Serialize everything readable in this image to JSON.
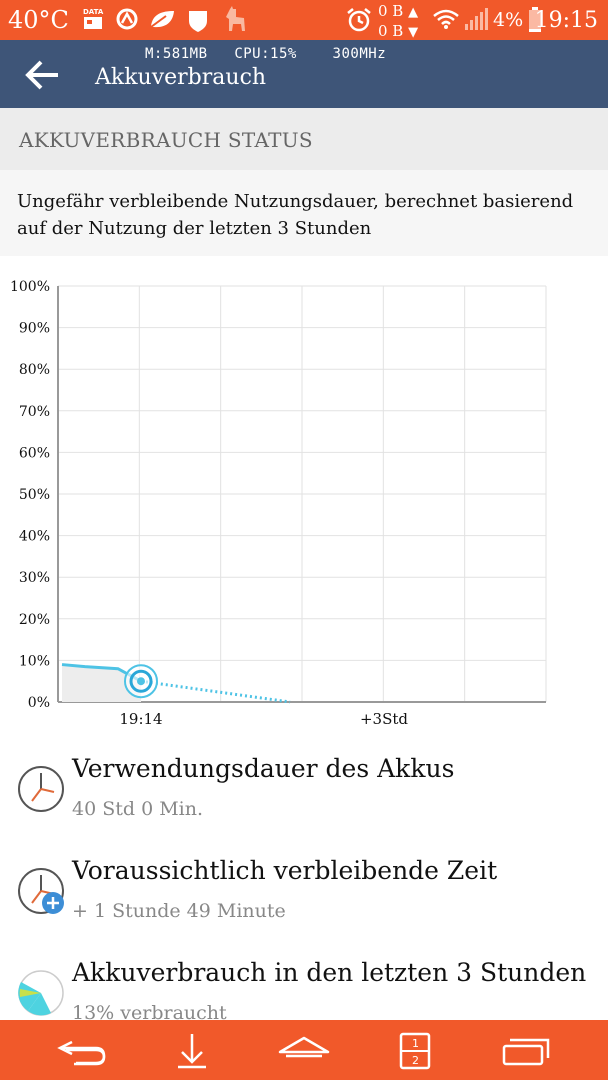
{
  "status_bar": {
    "temperature": "40°C",
    "data_label": "DATA",
    "net_up": "0 B",
    "net_down": "0 B",
    "battery_percent": "4%",
    "time": "19:15"
  },
  "toolbar": {
    "memory": "M:581MB",
    "cpu": "CPU:15%",
    "freq": "300MHz",
    "title": "Akkuverbrauch"
  },
  "section": {
    "header": "AKKUVERBRAUCH STATUS",
    "description": "Ungefähr verbleibende Nutzungsdauer, berechnet basierend auf der Nutzung der letzten 3 Stunden"
  },
  "chart_data": {
    "type": "line",
    "y_ticks": [
      "100%",
      "90%",
      "80%",
      "70%",
      "60%",
      "50%",
      "40%",
      "30%",
      "20%",
      "10%",
      "0%"
    ],
    "x_labels": [
      "19:14",
      "+3Std"
    ],
    "ylim": [
      0,
      100
    ],
    "grid": true,
    "series": [
      {
        "values_pct": [
          9,
          8.5,
          8,
          5
        ],
        "style": "solid",
        "color": "#4ec3e5"
      },
      {
        "values_pct": [
          5,
          0
        ],
        "style": "dotted",
        "color": "#4ec3e5"
      }
    ],
    "current_point_pct": 5
  },
  "items": [
    {
      "title": "Verwendungsdauer des Akkus",
      "subtitle": "40 Std 0 Min.",
      "icon": "clock-icon"
    },
    {
      "title": "Voraussichtlich verbleibende Zeit",
      "subtitle": "+ 1 Stunde 49 Minute",
      "icon": "clock-plus-icon"
    },
    {
      "title": "Akkuverbrauch in den letzten 3 Stunden",
      "subtitle": "13% verbraucht",
      "icon": "pie-chart-icon"
    }
  ],
  "colors": {
    "accent_orange": "#f1592a",
    "toolbar_blue": "#3e5578",
    "line_cyan": "#4ec3e5"
  }
}
